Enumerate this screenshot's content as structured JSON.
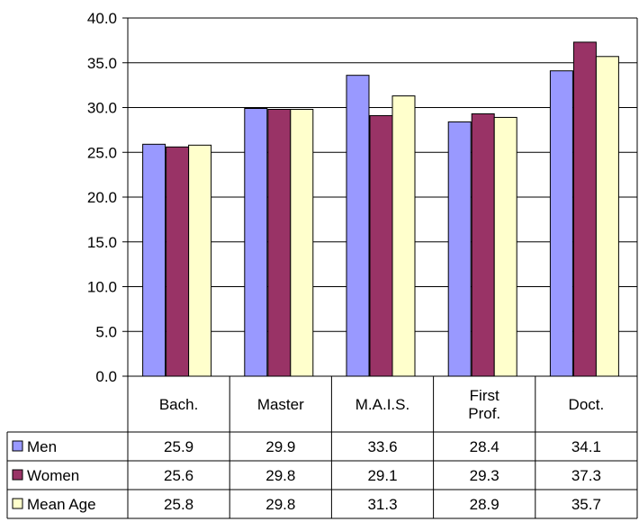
{
  "chart_data": {
    "type": "bar",
    "categories": [
      "Bach.",
      "Master",
      "M.A.I.S.",
      "First Prof.",
      "Doct."
    ],
    "category_labels": [
      [
        "Bach."
      ],
      [
        "Master"
      ],
      [
        "M.A.I.S."
      ],
      [
        "First",
        "Prof."
      ],
      [
        "Doct."
      ]
    ],
    "series": [
      {
        "name": "Men",
        "values": [
          25.9,
          29.9,
          33.6,
          28.4,
          34.1
        ],
        "color": "#9999ff"
      },
      {
        "name": "Women",
        "values": [
          25.6,
          29.8,
          29.1,
          29.3,
          37.3
        ],
        "color": "#993366"
      },
      {
        "name": "Mean Age",
        "values": [
          25.8,
          29.8,
          31.3,
          28.9,
          35.7
        ],
        "color": "#ffffcc"
      }
    ],
    "table_values": [
      [
        "25.9",
        "29.9",
        "33.6",
        "28.4",
        "34.1"
      ],
      [
        "25.6",
        "29.8",
        "29.1",
        "29.3",
        "37.3"
      ],
      [
        "25.8",
        "29.8",
        "31.3",
        "28.9",
        "35.7"
      ]
    ],
    "y_ticks": [
      "0.0",
      "5.0",
      "10.0",
      "15.0",
      "20.0",
      "25.0",
      "30.0",
      "35.0",
      "40.0"
    ],
    "ylim": [
      0,
      40
    ],
    "grid": true,
    "legend": "data-table"
  }
}
